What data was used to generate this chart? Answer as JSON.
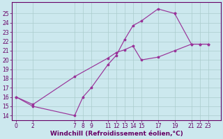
{
  "xlabel": "Windchill (Refroidissement éolien,°C)",
  "background_color": "#cce8ee",
  "line_color": "#993399",
  "grid_color": "#aacccc",
  "xticks": [
    0,
    2,
    7,
    8,
    9,
    11,
    12,
    13,
    14,
    15,
    17,
    19,
    21,
    22,
    23
  ],
  "yticks": [
    14,
    15,
    16,
    17,
    18,
    19,
    20,
    21,
    22,
    23,
    24,
    25
  ],
  "xlim": [
    -0.5,
    24.5
  ],
  "ylim": [
    13.5,
    26.2
  ],
  "line1_x": [
    0,
    2,
    7,
    8,
    9,
    11,
    12,
    13,
    14,
    15,
    17,
    19
  ],
  "line1_y": [
    16.0,
    15.0,
    14.0,
    16.0,
    17.0,
    19.5,
    20.5,
    22.2,
    23.7,
    24.2,
    25.5,
    25.0
  ],
  "line2_x": [
    19,
    21,
    22,
    23
  ],
  "line2_y": [
    25.0,
    21.7,
    21.7,
    21.7
  ],
  "line3_x": [
    0,
    2,
    7,
    11,
    12,
    13,
    14,
    15,
    17,
    19,
    21,
    22,
    23
  ],
  "line3_y": [
    16.0,
    15.2,
    18.2,
    20.2,
    20.8,
    21.1,
    21.5,
    20.0,
    20.3,
    21.0,
    21.7,
    21.7,
    21.7
  ],
  "font_color": "#660066",
  "tick_font_size": 5.5,
  "label_font_size": 6.5
}
